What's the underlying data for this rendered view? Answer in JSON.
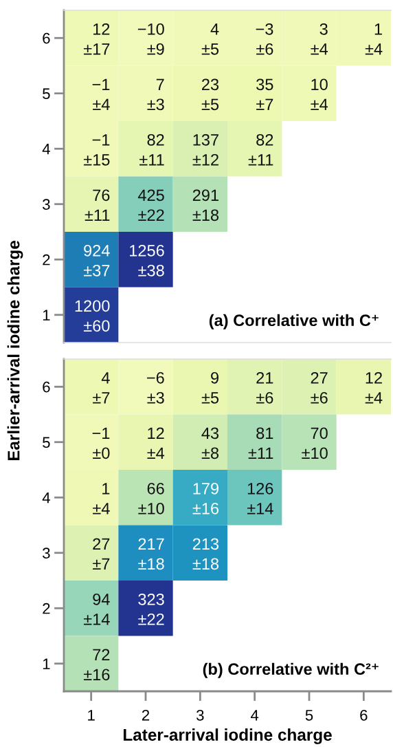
{
  "chart_data": [
    {
      "type": "heatmap",
      "categories": [
        "1",
        "2",
        "3",
        "4",
        "5",
        "6"
      ],
      "y_categories": [
        "6",
        "5",
        "4",
        "3",
        "2",
        "1"
      ],
      "cells": [
        [
          12,
          -10,
          4,
          -3,
          3,
          1
        ],
        [
          -1,
          7,
          23,
          35,
          10,
          null
        ],
        [
          -1,
          82,
          137,
          82,
          null,
          null
        ],
        [
          76,
          425,
          291,
          null,
          null,
          null
        ],
        [
          924,
          1256,
          null,
          null,
          null,
          null
        ],
        [
          1200,
          null,
          null,
          null,
          null,
          null
        ]
      ],
      "data_labels": true,
      "ylabel": "Earlier-arrival iodine charge",
      "tick_labels": "y",
      "annotations": [
        "(a) Correlative with C⁺",
        "±17",
        "±9",
        "±5",
        "±6",
        "±4",
        "±4",
        "±4",
        "±3",
        "±5",
        "±7",
        "±4",
        "±15",
        "±11",
        "±12",
        "±11",
        "±11",
        "±22",
        "±18",
        "±37",
        "±38",
        "±60"
      ]
    },
    {
      "type": "heatmap",
      "categories": [
        "1",
        "2",
        "3",
        "4",
        "5",
        "6"
      ],
      "y_categories": [
        "6",
        "5",
        "4",
        "3",
        "2",
        "1"
      ],
      "cells": [
        [
          4,
          -6,
          9,
          21,
          27,
          12
        ],
        [
          -1,
          12,
          43,
          81,
          70,
          null
        ],
        [
          1,
          66,
          179,
          126,
          null,
          null
        ],
        [
          27,
          217,
          213,
          null,
          null,
          null
        ],
        [
          94,
          323,
          null,
          null,
          null,
          null
        ],
        [
          72,
          null,
          null,
          null,
          null,
          null
        ]
      ],
      "data_labels": true,
      "xlabel": "Later-arrival iodine charge",
      "annotations": [
        "(b) Correlative with C²⁺",
        "±7",
        "±3",
        "±5",
        "±6",
        "±6",
        "±4",
        "±0",
        "±4",
        "±8",
        "±11",
        "±10",
        "±4",
        "±10",
        "±16",
        "±14",
        "±7",
        "±18",
        "±18",
        "±14",
        "±22",
        "±16"
      ]
    }
  ]
}
